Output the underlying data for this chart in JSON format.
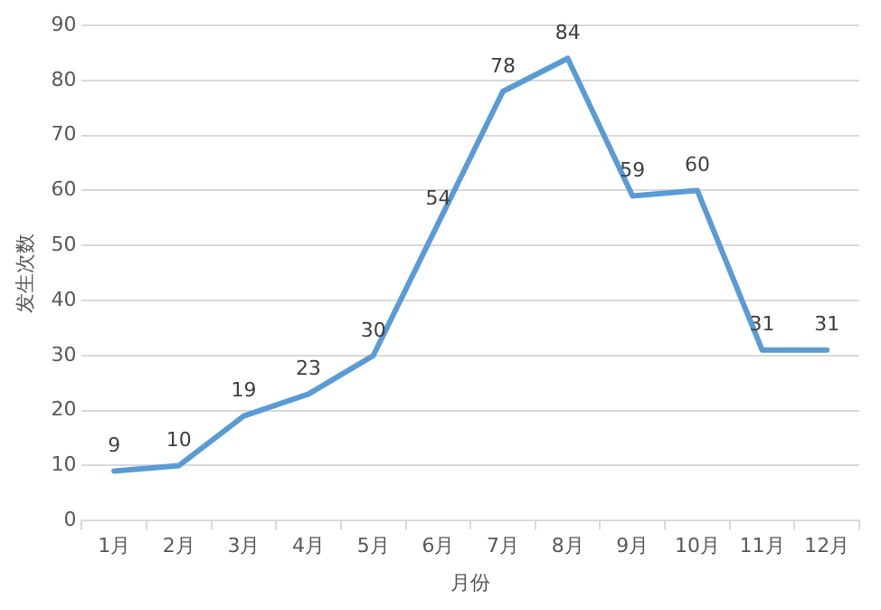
{
  "chart_data": {
    "type": "line",
    "xlabel": "月份",
    "ylabel": "发生次数",
    "categories": [
      "1月",
      "2月",
      "3月",
      "4月",
      "5月",
      "6月",
      "7月",
      "8月",
      "9月",
      "10月",
      "11月",
      "12月"
    ],
    "series": [
      {
        "color": "#5b9bd5",
        "values": [
          9,
          10,
          19,
          23,
          30,
          54,
          78,
          84,
          59,
          60,
          31,
          31
        ]
      }
    ],
    "ylim": [
      0,
      90
    ],
    "yticks": [
      0,
      10,
      20,
      30,
      40,
      50,
      60,
      70,
      80,
      90
    ],
    "grid": "y",
    "legend": false,
    "marker": "none",
    "line_style": "solid",
    "data_labels": true
  }
}
